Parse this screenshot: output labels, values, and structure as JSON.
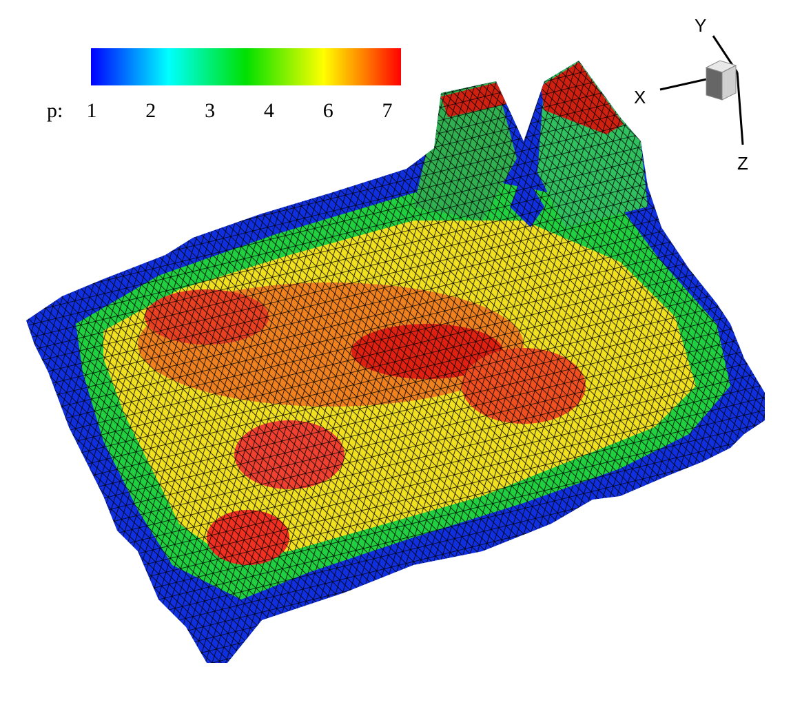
{
  "colorbar": {
    "label": "p:",
    "ticks": [
      1,
      2,
      3,
      4,
      6,
      7
    ]
  },
  "axes": {
    "x": "X",
    "y": "Y",
    "z": "Z"
  }
}
